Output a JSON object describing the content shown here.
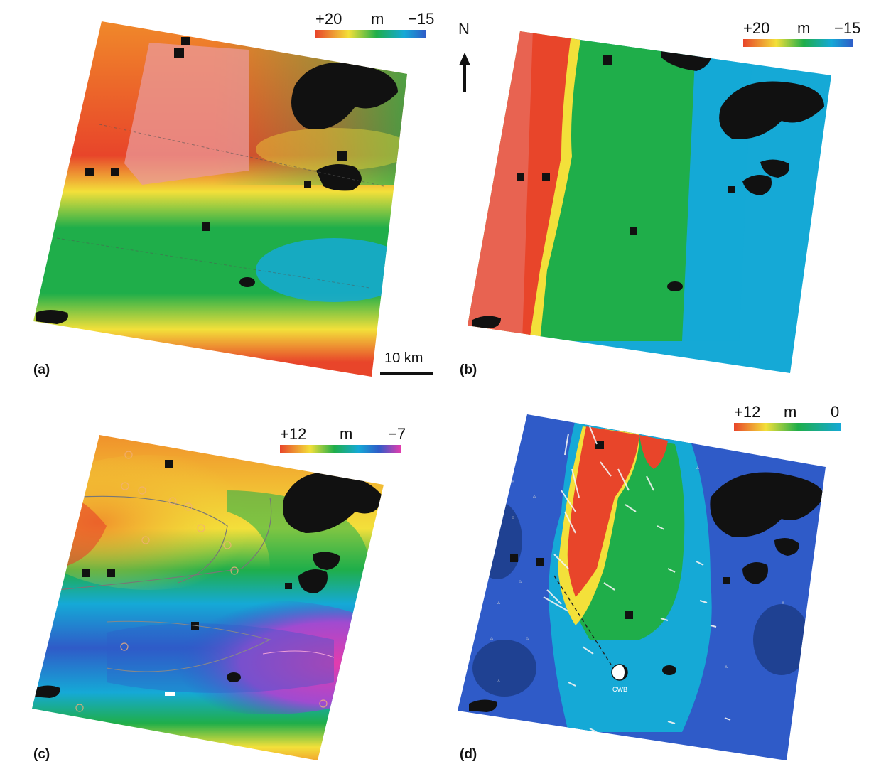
{
  "panels": {
    "a": {
      "label": "(a)",
      "legend": {
        "max": "+20",
        "unit": "m",
        "min": "−15"
      }
    },
    "b": {
      "label": "(b)",
      "legend": {
        "max": "+20",
        "unit": "m",
        "min": "−15"
      }
    },
    "c": {
      "label": "(c)",
      "legend": {
        "max": "+12",
        "unit": "m",
        "min": "−7"
      }
    },
    "d": {
      "label": "(d)",
      "legend": {
        "max": "+12",
        "unit": "m",
        "min": "0"
      },
      "station": "CWB"
    }
  },
  "north_arrow": {
    "letter": "N"
  },
  "scale_bar": {
    "label": "10 km"
  },
  "colors": {
    "black_mask": "#111111",
    "red": "#e8452a",
    "pink": "#e99a9a",
    "orange": "#f08a2a",
    "yellow": "#f3e03a",
    "green": "#1fae4a",
    "cyan": "#15a9d6",
    "blue": "#2f5bc8",
    "magenta": "#e23cae"
  },
  "icons": {
    "north": "north-arrow-icon",
    "focal": "focal-mechanism-icon"
  }
}
